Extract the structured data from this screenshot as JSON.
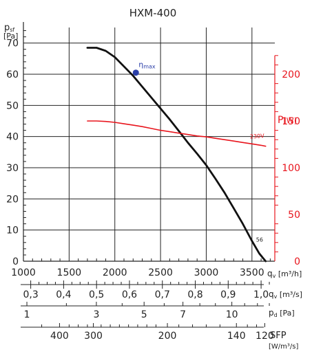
{
  "chart_data": {
    "type": "line",
    "title": "HXM-400",
    "left_axis": {
      "label_main": "p",
      "label_sub": "sf",
      "unit": "[Pa]",
      "min": 0,
      "max": 75,
      "ticks": [
        0,
        10,
        20,
        30,
        40,
        50,
        60,
        70
      ]
    },
    "right_axis": {
      "label_main": "P",
      "unit": "[W]",
      "min": 0,
      "max": 250,
      "ticks": [
        0,
        50,
        100,
        150,
        200
      ],
      "color": "#e8141c"
    },
    "x_axis": {
      "min": 1000,
      "max": 3750,
      "ticks": [
        1000,
        1500,
        2000,
        2500,
        3000,
        3500
      ],
      "label_main": "q",
      "label_sub": "v",
      "unit": "[m³/h]"
    },
    "grid": true,
    "series": [
      {
        "label": "56",
        "axis": "left",
        "color": "#111111",
        "x": [
          1700,
          1800,
          1900,
          2000,
          2100,
          2200,
          2300,
          2400,
          2500,
          2600,
          2700,
          2800,
          2900,
          3000,
          3100,
          3200,
          3300,
          3400,
          3500,
          3580,
          3650
        ],
        "y": [
          68.5,
          68.5,
          67.5,
          65.5,
          62.5,
          59.5,
          56.0,
          52.5,
          49.0,
          45.5,
          41.8,
          38.0,
          34.5,
          30.8,
          26.5,
          22.0,
          17.0,
          12.0,
          6.5,
          2.5,
          0
        ]
      },
      {
        "label": "230V",
        "axis": "right",
        "color": "#e8141c",
        "x": [
          1700,
          1800,
          1900,
          2000,
          2100,
          2200,
          2300,
          2400,
          2500,
          2600,
          2700,
          2800,
          2900,
          3000,
          3100,
          3200,
          3300,
          3400,
          3500,
          3600,
          3650
        ],
        "y": [
          150,
          150,
          149.5,
          148.5,
          147,
          145.5,
          144,
          142,
          140,
          138.5,
          137,
          135.5,
          134,
          133,
          131.5,
          130,
          128.5,
          127,
          125.5,
          124,
          123
        ]
      }
    ],
    "eta_max": {
      "label_main": "η",
      "label_sub": "max",
      "x": 2230,
      "y": 60.5,
      "color": "#2b3fa8"
    },
    "bottom_scales": [
      {
        "label_main": "q",
        "label_sub": "v",
        "unit": "[m³/s]",
        "ticks": [
          {
            "label": "0,3",
            "x": 1080
          },
          {
            "label": "0,4",
            "x": 1440
          },
          {
            "label": "0,5",
            "x": 1800
          },
          {
            "label": "0,6",
            "x": 2160
          },
          {
            "label": "0,7",
            "x": 2520
          },
          {
            "label": "0,8",
            "x": 2880
          },
          {
            "label": "0,9",
            "x": 3240
          },
          {
            "label": "1,0",
            "x": 3600
          }
        ],
        "minor": [
          1170,
          1260,
          1350,
          1530,
          1620,
          1710,
          1890,
          1980,
          2070,
          2250,
          2340,
          2430,
          2610,
          2700,
          2790,
          2970,
          3060,
          3150,
          3330,
          3420,
          3510,
          3690
        ]
      },
      {
        "label_main": "p",
        "label_sub": "d",
        "unit": "[Pa]",
        "ticks": [
          {
            "label": "1",
            "x": 1038
          },
          {
            "label": "3",
            "x": 1798
          },
          {
            "label": "5",
            "x": 2320
          },
          {
            "label": "7",
            "x": 2745
          },
          {
            "label": "10",
            "x": 3280
          }
        ],
        "minor": [
          1470,
          2080,
          2540,
          2930,
          3100,
          3420,
          3560,
          3690
        ]
      },
      {
        "label_main": "SFP",
        "unit": "[W/m³/s]",
        "ticks": [
          {
            "label": "400",
            "x": 1395
          },
          {
            "label": "300",
            "x": 1765
          },
          {
            "label": "200",
            "x": 2575
          },
          {
            "label": "140",
            "x": 3330
          },
          {
            "label": "120",
            "x": 3640
          }
        ],
        "minor": [
          1200,
          1500,
          1600,
          1700,
          1850,
          1950,
          2050,
          2150,
          2250,
          2350,
          2450,
          2700,
          2850,
          3000,
          3150,
          3450,
          3550
        ]
      }
    ]
  }
}
